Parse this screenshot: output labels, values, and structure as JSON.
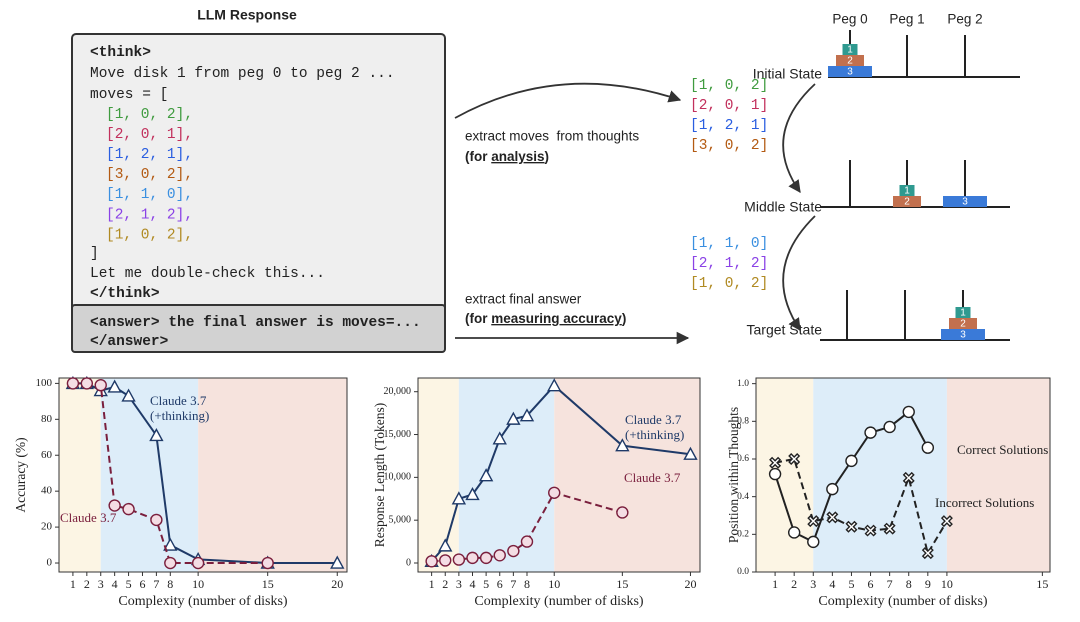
{
  "diagram": {
    "title": "LLM Response",
    "code": {
      "open": "<think>",
      "line1": "Move disk 1 from peg 0 to peg 2 ...",
      "line2": "moves = [",
      "moves": [
        {
          "text": "[1, 0, 2],",
          "color": "#3f9b3f"
        },
        {
          "text": "[2, 0, 1],",
          "color": "#c2305c"
        },
        {
          "text": "[1, 2, 1],",
          "color": "#2a5ee0"
        },
        {
          "text": "[3, 0, 2],",
          "color": "#b35a12"
        },
        {
          "text": "[1, 1, 0],",
          "color": "#3a8fe0"
        },
        {
          "text": "[2, 1, 2],",
          "color": "#8a42e6"
        },
        {
          "text": "[1, 0, 2],",
          "color": "#b08a22"
        }
      ],
      "close_list": "]",
      "line3": "Let me double-check this...",
      "close": "</think>",
      "answer_line1": "<answer> the final answer is moves=...",
      "answer_line2": "</answer>"
    },
    "extract_moves": {
      "text": "extract moves  from thoughts",
      "prefix": "(for ",
      "emphasis": "analysis",
      "suffix": ")"
    },
    "extract_answer": {
      "text": "extract final answer",
      "prefix": "(for ",
      "emphasis": "measuring accuracy",
      "suffix": ")"
    },
    "moves_first": [
      {
        "text": "[1, 0, 2]",
        "color": "#3f9b3f"
      },
      {
        "text": "[2, 0, 1]",
        "color": "#c2305c"
      },
      {
        "text": "[1, 2, 1]",
        "color": "#2a5ee0"
      },
      {
        "text": "[3, 0, 2]",
        "color": "#b35a12"
      }
    ],
    "moves_second": [
      {
        "text": "[1, 1, 0]",
        "color": "#3a8fe0"
      },
      {
        "text": "[2, 1, 2]",
        "color": "#8a42e6"
      },
      {
        "text": "[1, 0, 2]",
        "color": "#b08a22"
      }
    ],
    "states": [
      "Initial State",
      "Middle State",
      "Target State"
    ],
    "pegs": [
      "Peg 0",
      "Peg 1",
      "Peg 2"
    ],
    "disks": [
      "1",
      "2",
      "3"
    ]
  },
  "chart_data": [
    {
      "type": "line",
      "xlabel": "Complexity (number of disks)",
      "ylabel": "Accuracy (%)",
      "x": [
        1,
        2,
        3,
        4,
        5,
        7,
        8,
        10,
        15,
        20
      ],
      "series": [
        {
          "name": "Claude 3.7 (+thinking)",
          "color": "#1f3a68",
          "marker": "triangle",
          "dashed": false,
          "values": [
            100,
            100,
            96,
            98,
            93,
            71,
            10,
            2,
            0,
            0
          ]
        },
        {
          "name": "Claude 3.7",
          "color": "#7a1f3d",
          "marker": "circle",
          "dashed": true,
          "values": [
            100,
            100,
            99,
            32,
            30,
            24,
            0,
            0,
            0,
            null
          ]
        }
      ],
      "xlim": [
        0,
        20.7
      ],
      "ylim": [
        -5,
        103
      ],
      "xticks": [
        1,
        2,
        3,
        4,
        5,
        6,
        7,
        8,
        10,
        15,
        20
      ],
      "yticks": [
        0,
        20,
        40,
        60,
        80,
        100
      ],
      "regions": [
        {
          "range": [
            0,
            3
          ],
          "color": "#fcf5e4"
        },
        {
          "range": [
            3,
            10
          ],
          "color": "#ddedf9"
        },
        {
          "range": [
            10,
            20.7
          ],
          "color": "#f6e3dd"
        }
      ]
    },
    {
      "type": "line",
      "xlabel": "Complexity (number of disks)",
      "ylabel": "Response Length (Tokens)",
      "x": [
        1,
        2,
        3,
        4,
        5,
        6,
        7,
        8,
        10,
        15,
        20
      ],
      "series": [
        {
          "name": "Claude 3.7 (+thinking)",
          "color": "#1f3a68",
          "marker": "triangle",
          "dashed": false,
          "values": [
            200,
            2000,
            7500,
            8000,
            10200,
            14500,
            16800,
            17200,
            20700,
            13700,
            12700
          ]
        },
        {
          "name": "Claude 3.7",
          "color": "#7a1f3d",
          "marker": "circle",
          "dashed": true,
          "values": [
            200,
            300,
            400,
            600,
            600,
            900,
            1400,
            2500,
            8200,
            5900,
            null
          ]
        }
      ],
      "xlim": [
        0,
        20.7
      ],
      "ylim": [
        -1050,
        21600
      ],
      "xticks": [
        1,
        2,
        3,
        4,
        5,
        6,
        7,
        8,
        10,
        15,
        20
      ],
      "yticks": [
        0,
        {
          "value": 5000,
          "label": "5,000"
        },
        {
          "value": 10000,
          "label": "10,000"
        },
        {
          "value": 15000,
          "label": "15,000"
        },
        {
          "value": 20000,
          "label": "20,000"
        }
      ],
      "regions": [
        {
          "range": [
            0,
            3
          ],
          "color": "#fcf5e4"
        },
        {
          "range": [
            3,
            10
          ],
          "color": "#ddedf9"
        },
        {
          "range": [
            10,
            20.7
          ],
          "color": "#f6e3dd"
        }
      ]
    },
    {
      "type": "line",
      "xlabel": "Complexity (number of disks)",
      "ylabel": "Position within Thoughts",
      "x": [
        1,
        2,
        3,
        4,
        5,
        6,
        7,
        8,
        9,
        10
      ],
      "series": [
        {
          "name": "Correct Solutions",
          "color": "#222222",
          "marker": "circle",
          "dashed": false,
          "values": [
            0.52,
            0.21,
            0.16,
            0.44,
            0.59,
            0.74,
            0.77,
            0.85,
            0.66,
            null
          ]
        },
        {
          "name": "Incorrect Solutions",
          "color": "#222222",
          "marker": "x",
          "dashed": true,
          "values": [
            0.58,
            0.6,
            0.27,
            0.29,
            0.24,
            0.22,
            0.23,
            0.5,
            0.1,
            0.27
          ]
        }
      ],
      "xlim": [
        0,
        15.4
      ],
      "ylim": [
        0,
        1.03
      ],
      "xticks": [
        1,
        2,
        3,
        4,
        5,
        6,
        7,
        8,
        9,
        10,
        15
      ],
      "yticks": [
        {
          "value": 0,
          "label": "0.0"
        },
        0.2,
        0.4,
        0.6,
        0.8,
        {
          "value": 1,
          "label": "1.0"
        }
      ],
      "regions": [
        {
          "range": [
            0,
            3
          ],
          "color": "#fcf5e4"
        },
        {
          "range": [
            3,
            10
          ],
          "color": "#ddedf9"
        },
        {
          "range": [
            10,
            15.4
          ],
          "color": "#f6e3dd"
        }
      ]
    }
  ]
}
